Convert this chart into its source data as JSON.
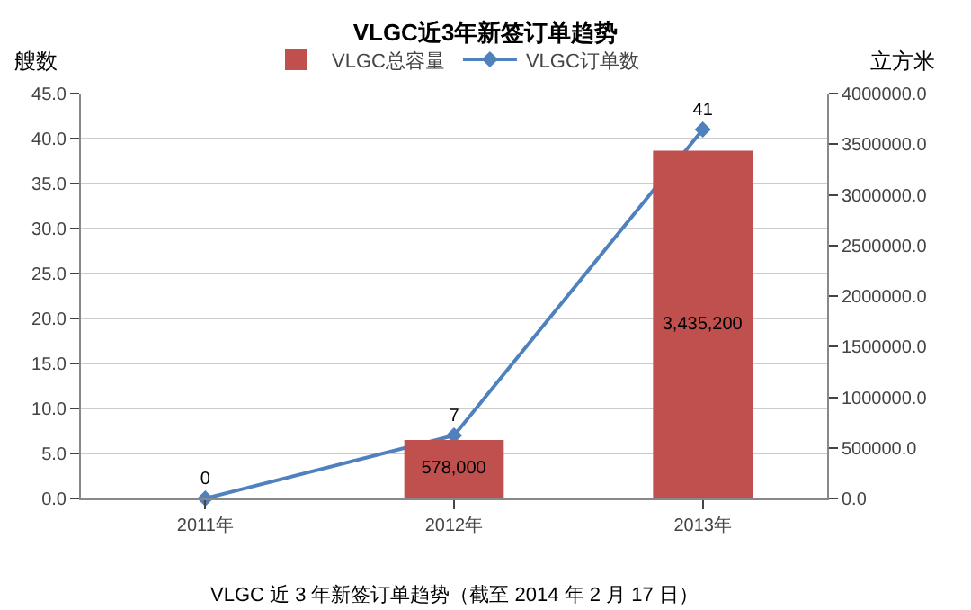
{
  "chart_data": {
    "type": "bar",
    "title": "VLGC近3年新签订单趋势",
    "ylabel": "艘数",
    "y2label": "立方米",
    "categories": [
      "2011年",
      "2012年",
      "2013年"
    ],
    "series": [
      {
        "name": "VLGC总容量",
        "axis": "y2",
        "color": "#c0504d",
        "values": [
          null,
          578000,
          3435200
        ],
        "value_labels": [
          null,
          "578,000",
          "3,435,200"
        ]
      },
      {
        "name": "VLGC订单数",
        "type": "line",
        "axis": "y",
        "color": "#4f81bd",
        "values": [
          0,
          7,
          41
        ],
        "value_labels": [
          "0",
          "7",
          "41"
        ],
        "marker": "diamond",
        "line_style": "solid"
      }
    ],
    "ylim": [
      0,
      45
    ],
    "yticks": [
      {
        "value": 0,
        "label": "0.0"
      },
      {
        "value": 5,
        "label": "5.0"
      },
      {
        "value": 10,
        "label": "10.0"
      },
      {
        "value": 15,
        "label": "15.0"
      },
      {
        "value": 20,
        "label": "20.0"
      },
      {
        "value": 25,
        "label": "25.0"
      },
      {
        "value": 30,
        "label": "30.0"
      },
      {
        "value": 35,
        "label": "35.0"
      },
      {
        "value": 40,
        "label": "40.0"
      },
      {
        "value": 45,
        "label": "45.0"
      }
    ],
    "y2lim": [
      0,
      4000000
    ],
    "y2ticks": [
      {
        "value": 0,
        "label": "0.0"
      },
      {
        "value": 500000,
        "label": "500000.0"
      },
      {
        "value": 1000000,
        "label": "1000000.0"
      },
      {
        "value": 1500000,
        "label": "1500000.0"
      },
      {
        "value": 2000000,
        "label": "2000000.0"
      },
      {
        "value": 2500000,
        "label": "2500000.0"
      },
      {
        "value": 3000000,
        "label": "3000000.0"
      },
      {
        "value": 3500000,
        "label": "3500000.0"
      },
      {
        "value": 4000000,
        "label": "4000000.0"
      }
    ],
    "grid": "y",
    "legend": "top",
    "annotations": [
      "VLGC 近 3 年新签订单趋势（截至 2014 年 2 月 17 日）"
    ]
  }
}
